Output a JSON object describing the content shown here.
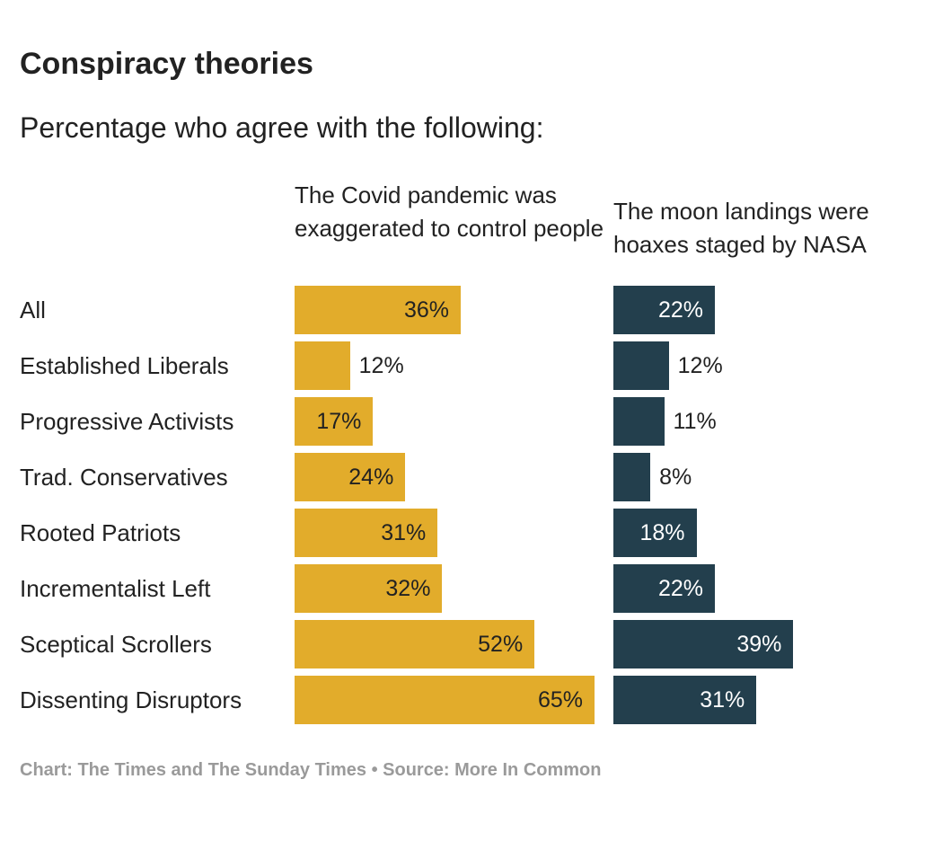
{
  "title": "Conspiracy theories",
  "subtitle": "Percentage who agree with the following:",
  "footer": "Chart: The Times and The Sunday Times • Source: More In Common",
  "chart_data": {
    "type": "bar",
    "orientation": "horizontal",
    "title": "Conspiracy theories",
    "subtitle": "Percentage who agree with the following:",
    "categories": [
      "All",
      "Established Liberals",
      "Progressive Activists",
      "Trad. Conservatives",
      "Rooted Patriots",
      "Incrementalist Left",
      "Sceptical Scrollers",
      "Dissenting Disruptors"
    ],
    "series": [
      {
        "name": "The Covid pandemic was exaggerated to control people",
        "color": "#E2AC2B",
        "values": [
          36,
          12,
          17,
          24,
          31,
          32,
          52,
          65
        ],
        "labels": [
          "36%",
          "12%",
          "17%",
          "24%",
          "31%",
          "32%",
          "52%",
          "65%"
        ]
      },
      {
        "name": "The moon landings were hoaxes staged by NASA",
        "color": "#233F4D",
        "values": [
          22,
          12,
          11,
          8,
          18,
          22,
          39,
          31
        ],
        "labels": [
          "22%",
          "12%",
          "11%",
          "8%",
          "18%",
          "22%",
          "39%",
          "31%"
        ]
      }
    ],
    "xlim": [
      0,
      65
    ],
    "grid": false,
    "legend": "column headers"
  }
}
